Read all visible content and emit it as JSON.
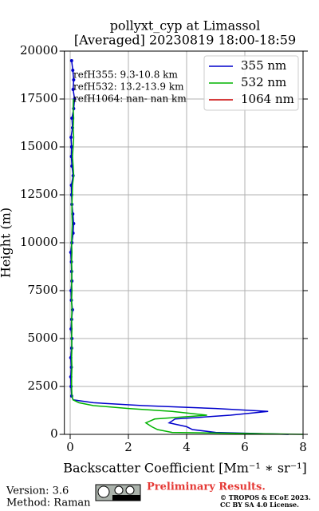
{
  "chart_data": {
    "type": "line",
    "title": [
      "pollyxt_cyp at Limassol",
      "[Averaged] 20230819 18:00-18:59"
    ],
    "xlabel": "Backscatter Coefficient [Mm⁻¹ ∗ sr⁻¹]",
    "ylabel": "Height (m)",
    "xlim": [
      -0.2,
      8
    ],
    "ylim": [
      0,
      20000
    ],
    "xticks": [
      0,
      2,
      4,
      6,
      8
    ],
    "yticks": [
      0,
      2500,
      5000,
      7500,
      10000,
      12500,
      15000,
      17500,
      20000
    ],
    "grid": true,
    "legend": "upper right",
    "y": [
      0,
      100,
      250,
      400,
      600,
      800,
      1000,
      1200,
      1350,
      1500,
      1650,
      1800,
      2000,
      2500,
      3000,
      3500,
      4000,
      4500,
      5000,
      5500,
      6000,
      6500,
      7000,
      7500,
      8000,
      8500,
      9000,
      9500,
      10000,
      10500,
      11000,
      11500,
      12000,
      12500,
      13000,
      13500,
      14000,
      14500,
      15000,
      15500,
      16000,
      16500,
      17000,
      17500,
      18000,
      18500,
      19000,
      19500
    ],
    "series": [
      {
        "name": "355 nm",
        "color": "#0000cc",
        "markers": true,
        "values": [
          7.5,
          5.0,
          4.2,
          4.0,
          3.4,
          3.6,
          5.5,
          6.8,
          5.0,
          2.5,
          0.8,
          0.1,
          0.05,
          0.03,
          0.02,
          0.04,
          0.02,
          0.05,
          0.06,
          0.03,
          0.05,
          0.08,
          0.04,
          0.03,
          0.06,
          0.05,
          0.04,
          0.02,
          0.06,
          0.1,
          0.12,
          0.09,
          0.06,
          0.05,
          0.04,
          0.1,
          0.06,
          0.04,
          0.05,
          0.03,
          0.08,
          0.06,
          0.12,
          0.15,
          0.1,
          0.12,
          0.09,
          0.05
        ]
      },
      {
        "name": "532 nm",
        "color": "#00b300",
        "markers": false,
        "values": [
          8.0,
          3.5,
          3.0,
          2.8,
          2.6,
          2.9,
          4.7,
          3.5,
          2.0,
          0.8,
          0.3,
          0.1,
          0.06,
          0.05,
          0.05,
          0.06,
          0.05,
          0.06,
          0.05,
          0.06,
          0.05,
          0.06,
          0.05,
          0.06,
          0.05,
          0.06,
          0.05,
          0.06,
          0.05,
          0.06,
          0.07,
          0.06,
          0.06,
          0.07,
          0.08,
          0.12,
          0.1,
          0.08,
          0.1,
          0.12,
          0.1,
          0.12,
          0.1,
          0.11,
          null,
          null,
          null,
          null
        ]
      },
      {
        "name": "1064 nm",
        "color": "#cc0000",
        "markers": false,
        "values": [
          null,
          null,
          null,
          null,
          null,
          null,
          null,
          null,
          null,
          null,
          null,
          null,
          null,
          null,
          null,
          null,
          null,
          null,
          null,
          null,
          null,
          null,
          null,
          null,
          null,
          null,
          null,
          null,
          null,
          null,
          null,
          null,
          null,
          null,
          null,
          null,
          null,
          null,
          null,
          null,
          null,
          null,
          null,
          null,
          null,
          null,
          null,
          null
        ]
      }
    ],
    "annotations": [
      "refH355:  9.3-10.8 km",
      "refH532: 13.2-13.9 km",
      "refH1064:  nan- nan km"
    ]
  },
  "footer": {
    "version": "Version: 3.6",
    "method": "Method: Raman",
    "notice": "Preliminary Results.",
    "copyright": "© TROPOS & ECoE 2023.",
    "license": "CC BY SA 4.0 License."
  }
}
